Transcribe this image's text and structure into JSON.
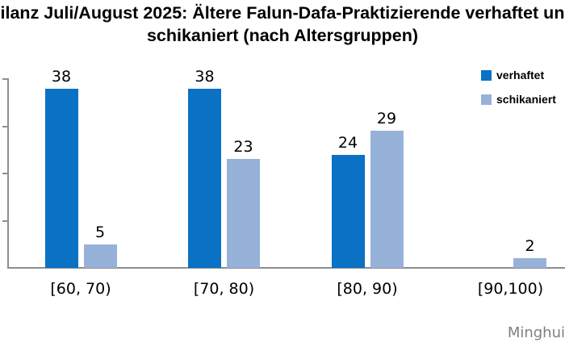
{
  "title": {
    "line1": "ilanz Juli/August 2025: Ältere Falun-Dafa-Praktizierende verhaftet un",
    "line2": "schikaniert (nach Altersgruppen)"
  },
  "legend": [
    {
      "label": "verhaftet",
      "color": "#0a71c5"
    },
    {
      "label": "schikaniert",
      "color": "#97b2d9"
    }
  ],
  "chart_data": {
    "type": "bar",
    "title": "ilanz Juli/August 2025: Ältere Falun-Dafa-Praktizierende verhaftet un schikaniert (nach Altersgruppen)",
    "categories": [
      "[60, 70)",
      "[70, 80)",
      "[80, 90)",
      "[90,100)"
    ],
    "series": [
      {
        "name": "verhaftet",
        "color": "#0a71c5",
        "values": [
          38,
          38,
          24,
          0
        ]
      },
      {
        "name": "schikaniert",
        "color": "#97b2d9",
        "values": [
          5,
          23,
          29,
          2
        ]
      }
    ],
    "xlabel": "",
    "ylabel": "",
    "ylim": [
      0,
      40
    ],
    "y_tick_interval": 10,
    "grid": false,
    "legend_position": "top-right",
    "value_labels": true
  },
  "colors": {
    "axis": "#8e8e8e",
    "text": "#000000",
    "watermark_text": "#808080",
    "background": "#ffffff"
  },
  "watermark": "Minghui"
}
